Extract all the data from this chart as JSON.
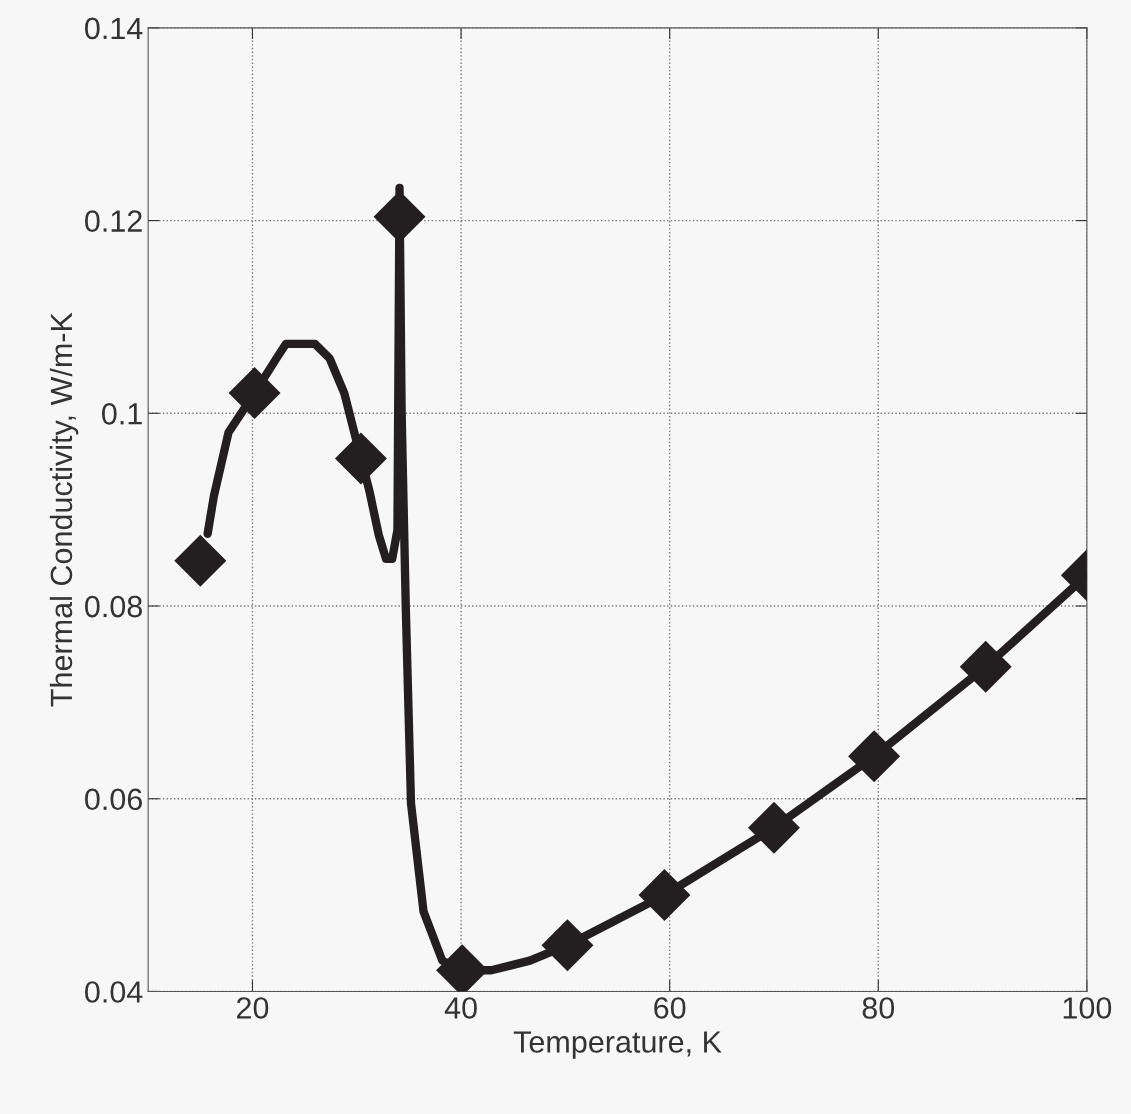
{
  "chart_data": {
    "type": "line",
    "xlabel": "Temperature, K",
    "ylabel": "Thermal Conductivity, W/m-K",
    "xlim": [
      10,
      100
    ],
    "xticks": [
      20,
      40,
      60,
      80,
      100
    ],
    "ylim": [
      0.04,
      0.14
    ],
    "yticks": [
      0.04,
      0.06,
      0.08,
      {
        "value": 0.1,
        "label": "0.1"
      },
      0.12,
      0.14
    ],
    "grid": true,
    "legend": false,
    "series": [
      {
        "color": "#231f20",
        "marker": "none",
        "line_style": "solid",
        "x": [
          15.7,
          16.3,
          17.7,
          20.2,
          22.3,
          23.2,
          26,
          27.4,
          28.8,
          30.4,
          31.2,
          32.1,
          32.8,
          33.4,
          33.9,
          34.1,
          34.3,
          34.7,
          35.2,
          36.4,
          38.2,
          40.1,
          42.9,
          46.6,
          50.2,
          59.5,
          70,
          79.6,
          90.3,
          100
        ],
        "values": [
          0.0875,
          0.0914,
          0.098,
          0.1021,
          0.1057,
          0.1072,
          0.1072,
          0.1057,
          0.1021,
          0.0953,
          0.092,
          0.0874,
          0.0849,
          0.0849,
          0.0879,
          0.1234,
          0.1001,
          0.0798,
          0.0595,
          0.0483,
          0.0432,
          0.0422,
          0.0422,
          0.0432,
          0.0448,
          0.05,
          0.057,
          0.0644,
          0.0737,
          0.0832
        ]
      },
      {
        "type": "scatter",
        "color": "#231f20",
        "marker": "diamond",
        "x": [
          15,
          20.2,
          30.4,
          34.1,
          40.1,
          50.2,
          59.5,
          70,
          79.6,
          90.3,
          100
        ],
        "values": [
          0.0847,
          0.1021,
          0.0953,
          0.1204,
          0.0422,
          0.0448,
          0.05,
          0.057,
          0.0644,
          0.0737,
          0.0832
        ]
      }
    ]
  }
}
